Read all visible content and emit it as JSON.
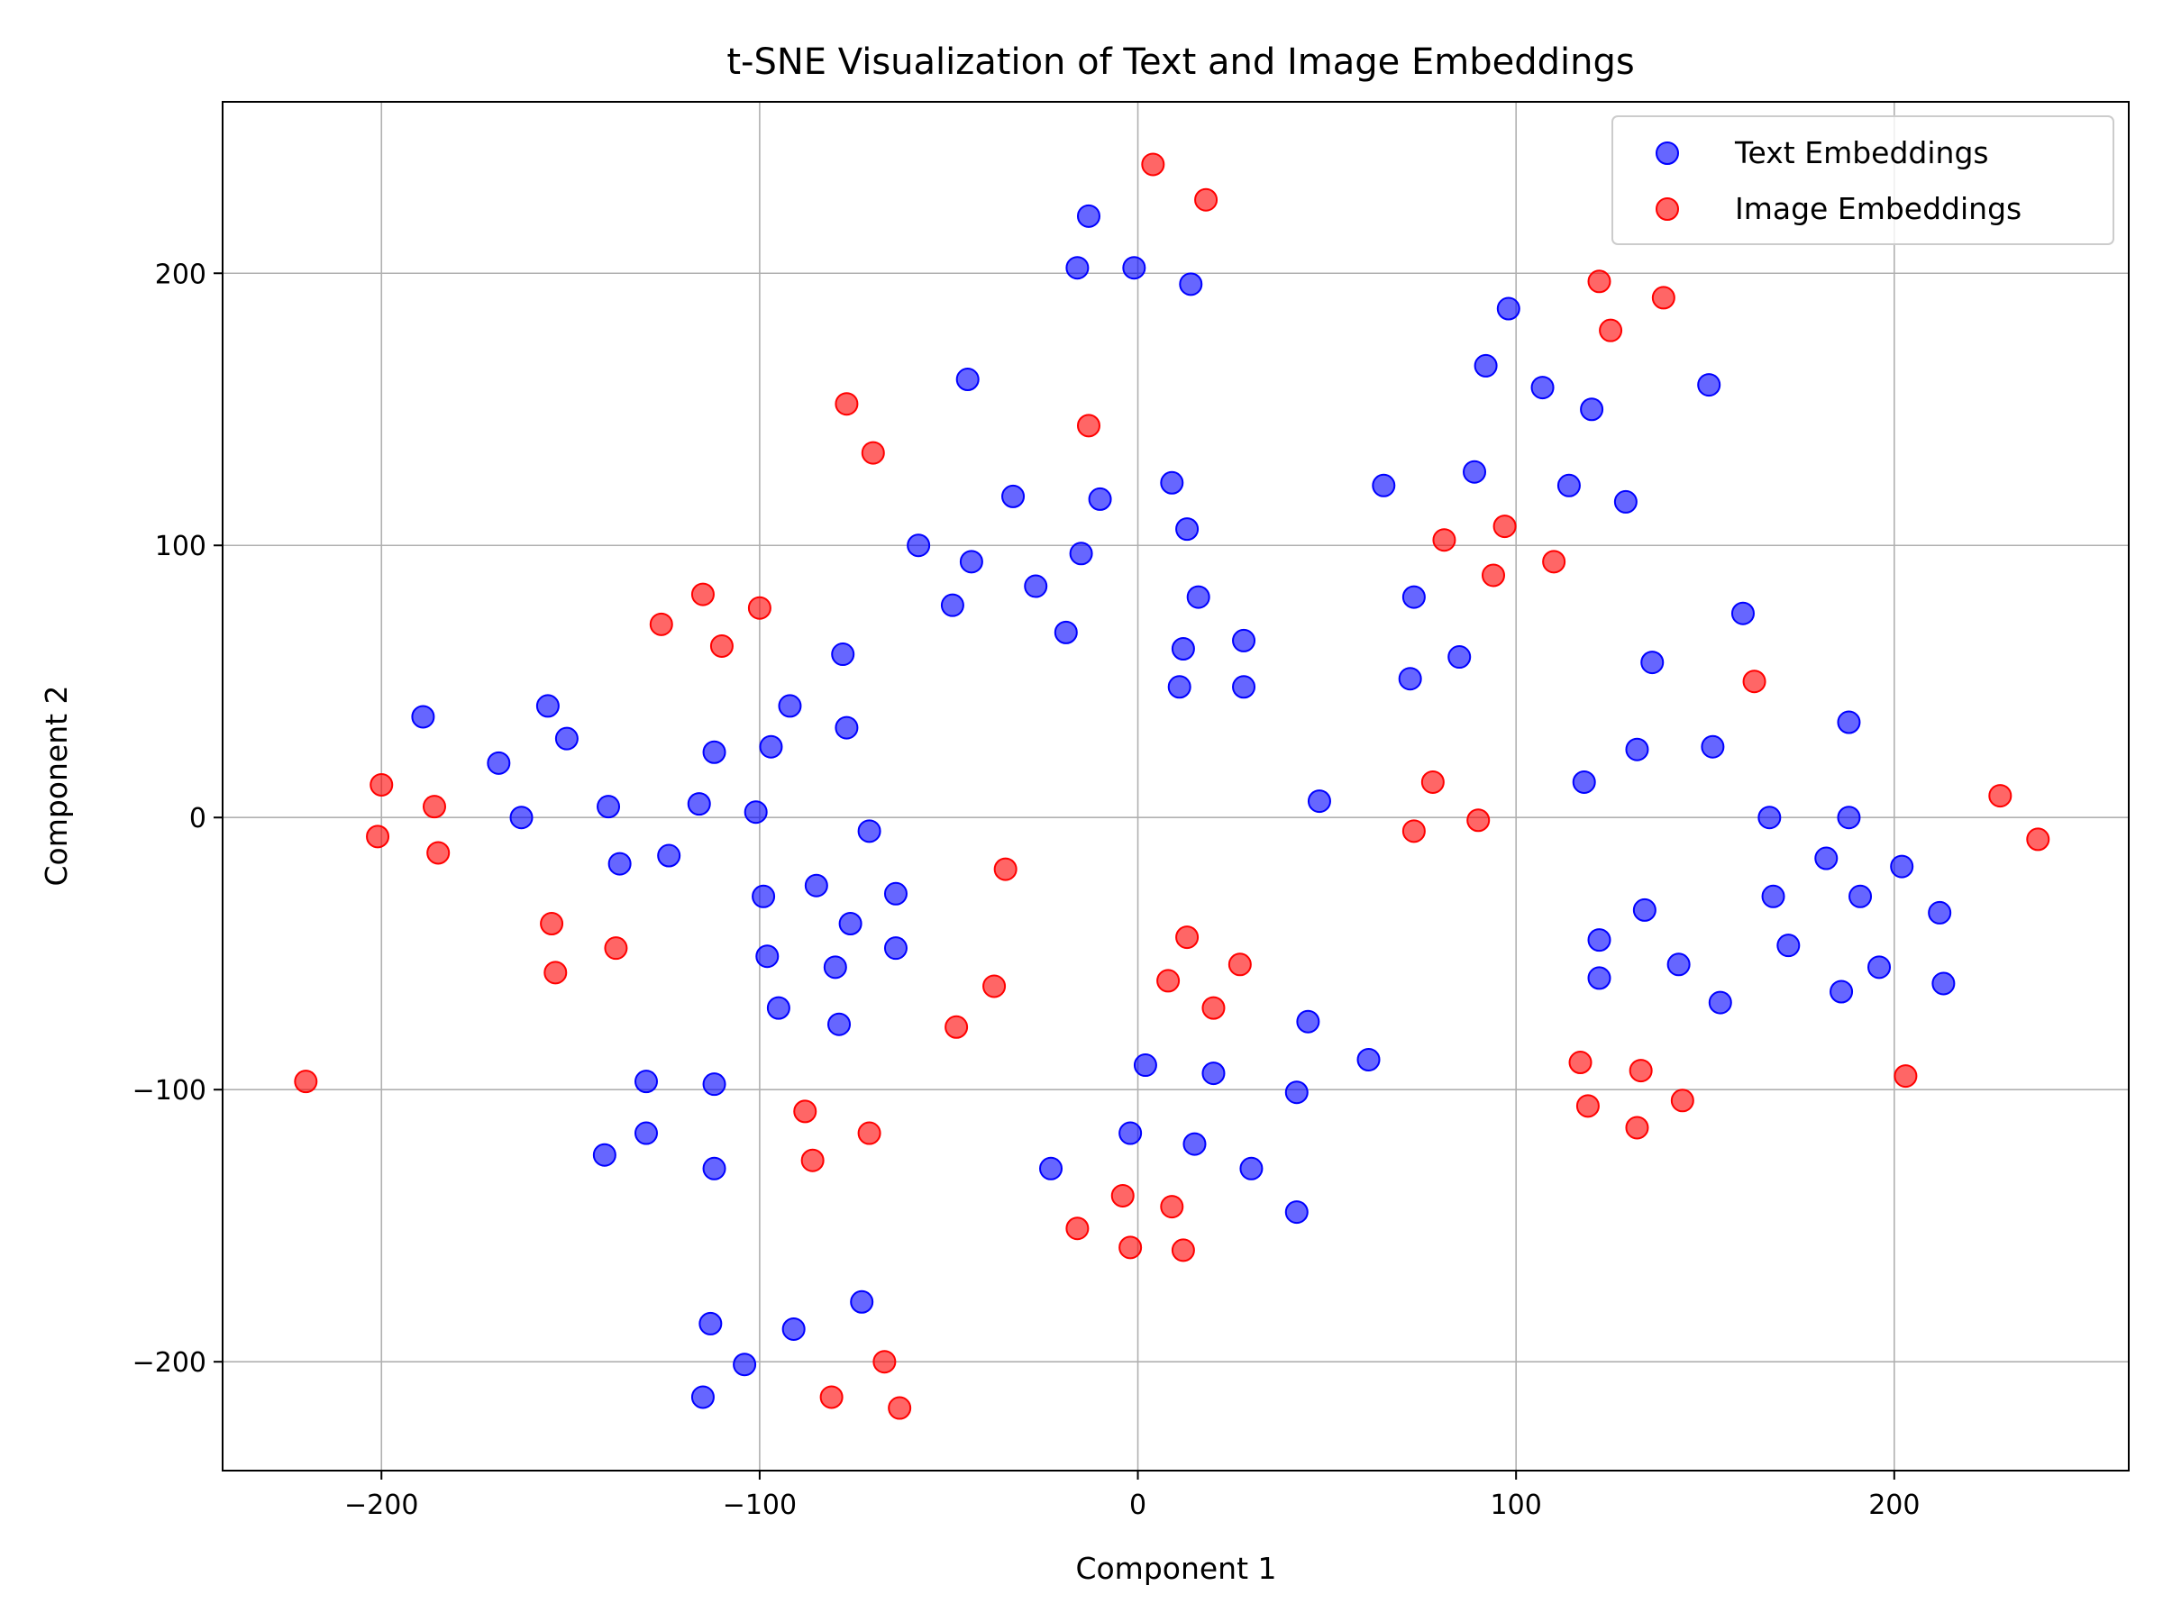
{
  "chart_data": {
    "type": "scatter",
    "title": "t-SNE Visualization of Text and Image Embeddings",
    "xlabel": "Component 1",
    "ylabel": "Component 2",
    "xlim": [
      -242,
      262
    ],
    "ylim": [
      -240,
      263
    ],
    "xticks": [
      -200,
      -100,
      0,
      100,
      200
    ],
    "yticks": [
      -200,
      -100,
      0,
      100,
      200
    ],
    "xtick_labels": [
      "−200",
      "−100",
      "0",
      "100",
      "200"
    ],
    "ytick_labels": [
      "−200",
      "−100",
      "0",
      "100",
      "200"
    ],
    "grid": true,
    "legend_position": "top-right",
    "series": [
      {
        "name": "Text Embeddings",
        "color": "#0000ff",
        "alpha": 0.6,
        "points": [
          [
            -13,
            221
          ],
          [
            -16,
            202
          ],
          [
            -1,
            202
          ],
          [
            14,
            196
          ],
          [
            -45,
            161
          ],
          [
            -33,
            118
          ],
          [
            -10,
            117
          ],
          [
            9,
            123
          ],
          [
            13,
            106
          ],
          [
            -15,
            97
          ],
          [
            -58,
            100
          ],
          [
            -44,
            94
          ],
          [
            -49,
            78
          ],
          [
            -27,
            85
          ],
          [
            -19,
            68
          ],
          [
            16,
            81
          ],
          [
            12,
            62
          ],
          [
            28,
            65
          ],
          [
            11,
            48
          ],
          [
            28,
            48
          ],
          [
            -189,
            37
          ],
          [
            -169,
            20
          ],
          [
            -163,
            0
          ],
          [
            -156,
            41
          ],
          [
            -151,
            29
          ],
          [
            -140,
            4
          ],
          [
            -137,
            -17
          ],
          [
            -124,
            -14
          ],
          [
            -116,
            5
          ],
          [
            -112,
            24
          ],
          [
            -101,
            2
          ],
          [
            -97,
            26
          ],
          [
            -92,
            41
          ],
          [
            -78,
            60
          ],
          [
            -77,
            33
          ],
          [
            -71,
            -5
          ],
          [
            -99,
            -29
          ],
          [
            -98,
            -51
          ],
          [
            -95,
            -70
          ],
          [
            -85,
            -25
          ],
          [
            -80,
            -55
          ],
          [
            -76,
            -39
          ],
          [
            -64,
            -28
          ],
          [
            -64,
            -48
          ],
          [
            -79,
            -76
          ],
          [
            -130,
            -97
          ],
          [
            -112,
            -98
          ],
          [
            -130,
            -116
          ],
          [
            -141,
            -124
          ],
          [
            -112,
            -129
          ],
          [
            -113,
            -186
          ],
          [
            -91,
            -188
          ],
          [
            -73,
            -178
          ],
          [
            -104,
            -201
          ],
          [
            -115,
            -213
          ],
          [
            98,
            187
          ],
          [
            92,
            166
          ],
          [
            107,
            158
          ],
          [
            120,
            150
          ],
          [
            151,
            159
          ],
          [
            65,
            122
          ],
          [
            89,
            127
          ],
          [
            114,
            122
          ],
          [
            129,
            116
          ],
          [
            73,
            81
          ],
          [
            72,
            51
          ],
          [
            85,
            59
          ],
          [
            48,
            6
          ],
          [
            160,
            75
          ],
          [
            136,
            57
          ],
          [
            118,
            13
          ],
          [
            132,
            25
          ],
          [
            152,
            26
          ],
          [
            188,
            35
          ],
          [
            167,
            0
          ],
          [
            188,
            0
          ],
          [
            182,
            -15
          ],
          [
            202,
            -18
          ],
          [
            168,
            -29
          ],
          [
            191,
            -29
          ],
          [
            212,
            -35
          ],
          [
            134,
            -34
          ],
          [
            122,
            -45
          ],
          [
            172,
            -47
          ],
          [
            143,
            -54
          ],
          [
            196,
            -55
          ],
          [
            122,
            -59
          ],
          [
            154,
            -68
          ],
          [
            213,
            -61
          ],
          [
            186,
            -64
          ],
          [
            2,
            -91
          ],
          [
            20,
            -94
          ],
          [
            45,
            -75
          ],
          [
            61,
            -89
          ],
          [
            42,
            -101
          ],
          [
            -2,
            -116
          ],
          [
            15,
            -120
          ],
          [
            -23,
            -129
          ],
          [
            30,
            -129
          ],
          [
            42,
            -145
          ]
        ]
      },
      {
        "name": "Image Embeddings",
        "color": "#ff0000",
        "alpha": 0.6,
        "points": [
          [
            4,
            240
          ],
          [
            18,
            227
          ],
          [
            122,
            197
          ],
          [
            139,
            191
          ],
          [
            125,
            179
          ],
          [
            -77,
            152
          ],
          [
            -70,
            134
          ],
          [
            -13,
            144
          ],
          [
            -115,
            82
          ],
          [
            -100,
            77
          ],
          [
            -126,
            71
          ],
          [
            -110,
            63
          ],
          [
            81,
            102
          ],
          [
            97,
            107
          ],
          [
            94,
            89
          ],
          [
            110,
            94
          ],
          [
            163,
            50
          ],
          [
            -200,
            12
          ],
          [
            -186,
            4
          ],
          [
            -201,
            -7
          ],
          [
            -185,
            -13
          ],
          [
            -155,
            -39
          ],
          [
            -154,
            -57
          ],
          [
            -138,
            -48
          ],
          [
            -220,
            -97
          ],
          [
            -35,
            -19
          ],
          [
            -38,
            -62
          ],
          [
            -48,
            -77
          ],
          [
            78,
            13
          ],
          [
            73,
            -5
          ],
          [
            90,
            -1
          ],
          [
            228,
            8
          ],
          [
            238,
            -8
          ],
          [
            203,
            -95
          ],
          [
            13,
            -44
          ],
          [
            27,
            -54
          ],
          [
            8,
            -60
          ],
          [
            20,
            -70
          ],
          [
            -88,
            -108
          ],
          [
            -71,
            -116
          ],
          [
            -86,
            -126
          ],
          [
            117,
            -90
          ],
          [
            133,
            -93
          ],
          [
            119,
            -106
          ],
          [
            144,
            -104
          ],
          [
            132,
            -114
          ],
          [
            -4,
            -139
          ],
          [
            9,
            -143
          ],
          [
            -16,
            -151
          ],
          [
            -2,
            -158
          ],
          [
            12,
            -159
          ],
          [
            -67,
            -200
          ],
          [
            -81,
            -213
          ],
          [
            -63,
            -217
          ]
        ]
      }
    ]
  }
}
